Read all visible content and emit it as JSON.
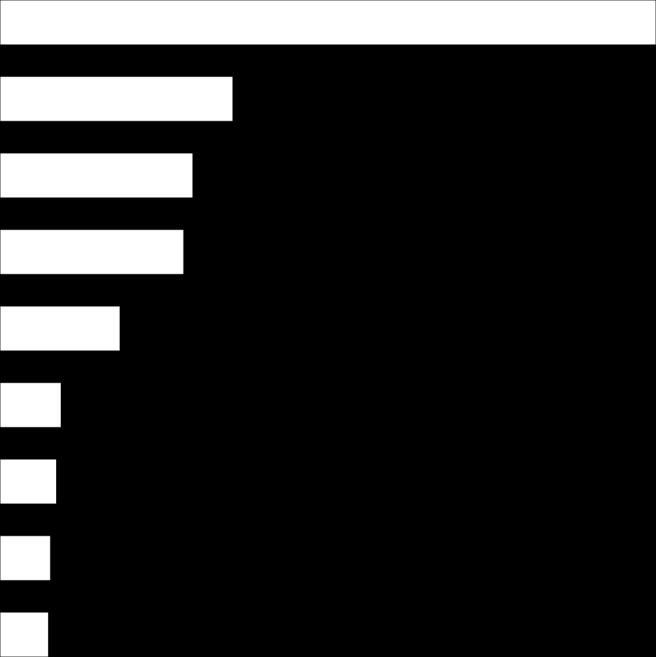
{
  "chart_data": {
    "type": "hbar",
    "categories": [
      null,
      null,
      null,
      null,
      null,
      null,
      null,
      null,
      null
    ],
    "values": [
      100,
      35.5,
      29.4,
      28.0,
      18.3,
      9.3,
      8.6,
      7.7,
      7.4
    ],
    "color": "#ffffff",
    "background": "#000000",
    "xlim": [
      0,
      100
    ]
  }
}
